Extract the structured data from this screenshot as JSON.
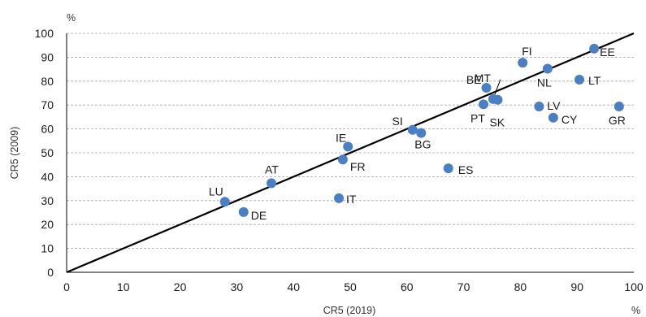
{
  "chart_data": {
    "type": "scatter",
    "title": "",
    "xlabel": "CR5 (2019)",
    "ylabel": "CR5 (2009)",
    "x_unit": "%",
    "y_unit": "%",
    "xlim": [
      0,
      100
    ],
    "ylim": [
      0,
      100
    ],
    "xticks": [
      "0",
      "10",
      "20",
      "30",
      "40",
      "50",
      "60",
      "70",
      "80",
      "90",
      "100"
    ],
    "yticks": [
      "0",
      "10",
      "20",
      "30",
      "40",
      "50",
      "60",
      "70",
      "80",
      "90",
      "100"
    ],
    "grid": "horizontal-dashed",
    "reference_line": {
      "type": "diagonal",
      "from": [
        0,
        0
      ],
      "to": [
        100,
        100
      ]
    },
    "marker_color": "#4a7fc4",
    "line_color": "#000000",
    "points": [
      {
        "label": "LU",
        "x": 27.9,
        "y": 29.5
      },
      {
        "label": "DE",
        "x": 31.2,
        "y": 25.2
      },
      {
        "label": "AT",
        "x": 36.1,
        "y": 37.3
      },
      {
        "label": "IT",
        "x": 48.0,
        "y": 31.0
      },
      {
        "label": "FR",
        "x": 48.7,
        "y": 47.2
      },
      {
        "label": "IE",
        "x": 49.6,
        "y": 52.6
      },
      {
        "label": "SI",
        "x": 61.0,
        "y": 59.6
      },
      {
        "label": "BG",
        "x": 62.5,
        "y": 58.3
      },
      {
        "label": "ES",
        "x": 67.3,
        "y": 43.5
      },
      {
        "label": "PT",
        "x": 73.5,
        "y": 70.3
      },
      {
        "label": "BE",
        "x": 74.0,
        "y": 77.2
      },
      {
        "label": "MT",
        "x": 75.2,
        "y": 72.5
      },
      {
        "label": "SK",
        "x": 76.0,
        "y": 72.2
      },
      {
        "label": "FI",
        "x": 80.4,
        "y": 87.7
      },
      {
        "label": "LV",
        "x": 83.3,
        "y": 69.4
      },
      {
        "label": "NL",
        "x": 84.8,
        "y": 85.2
      },
      {
        "label": "CY",
        "x": 85.8,
        "y": 64.7
      },
      {
        "label": "LT",
        "x": 90.4,
        "y": 80.6
      },
      {
        "label": "EE",
        "x": 93.0,
        "y": 93.6
      },
      {
        "label": "GR",
        "x": 97.4,
        "y": 69.4
      }
    ]
  }
}
